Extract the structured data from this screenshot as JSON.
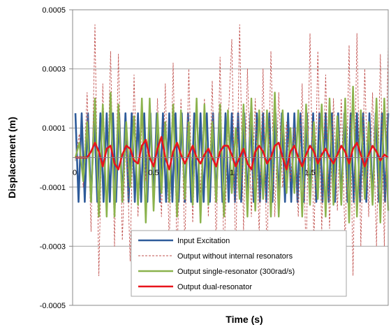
{
  "chart_data": {
    "type": "line",
    "title": "",
    "xlabel": "Time (s)",
    "ylabel": "Displacement (m)",
    "xlim": [
      0,
      2
    ],
    "ylim": [
      -0.0005,
      0.0005
    ],
    "y_ticks": [
      0.0005,
      0.0003,
      0.0001,
      -0.0001,
      -0.0003,
      -0.0005
    ],
    "y_tick_labels": [
      "0.0005",
      "0.0003",
      "0.0001",
      "-0.0001",
      "-0.0003",
      "-0.0005"
    ],
    "x_ticks": [
      0,
      0.5,
      1,
      1.5
    ],
    "x_tick_labels": [
      "0",
      "0.5",
      "1",
      "1.5"
    ],
    "grid": "horizontal",
    "legend_position": "bottom-center",
    "series": [
      {
        "name": "Input Excitation",
        "color": "#2e5b9a",
        "style": "solid-thick",
        "x": [
          0,
          0.02,
          0.04,
          0.06,
          0.08,
          0.1,
          0.12,
          0.14,
          0.16,
          0.18,
          0.2,
          0.22,
          0.24,
          0.26,
          0.28,
          0.3,
          0.32,
          0.34,
          0.36,
          0.38,
          0.4,
          0.42,
          0.44,
          0.46,
          0.48,
          0.5,
          0.52,
          0.54,
          0.56,
          0.58,
          0.6,
          0.62,
          0.64,
          0.66,
          0.68,
          0.7,
          0.72,
          0.74,
          0.76,
          0.78,
          0.8,
          0.82,
          0.84,
          0.86,
          0.88,
          0.9,
          0.92,
          0.94,
          0.96,
          0.98,
          1.0,
          1.02,
          1.04,
          1.06,
          1.08,
          1.1,
          1.12,
          1.14,
          1.16,
          1.18,
          1.2,
          1.22,
          1.24,
          1.26,
          1.28,
          1.3,
          1.32,
          1.34,
          1.36,
          1.38,
          1.4,
          1.42,
          1.44,
          1.46,
          1.48,
          1.5,
          1.52,
          1.54,
          1.56,
          1.58,
          1.6,
          1.62,
          1.64,
          1.66,
          1.68,
          1.7,
          1.72,
          1.74,
          1.76,
          1.78,
          1.8,
          1.82,
          1.84,
          1.86,
          1.88,
          1.9,
          1.92,
          1.94,
          1.96,
          1.98,
          2.0
        ],
        "y": [
          0.00015,
          -0.00015,
          0.00015,
          -0.00015,
          0.00015,
          -0.00015,
          0.00015,
          -0.00015,
          0.00015,
          -0.00015,
          0.00015,
          -0.00015,
          0.00015,
          -0.00015,
          0.00015,
          -0.00015,
          0.00015,
          -0.00015,
          0.00015,
          -0.00015,
          0.00015,
          -0.00015,
          0.00015,
          -0.00015,
          0.00015,
          -0.00015,
          0.00015,
          -0.00015,
          0.00015,
          -0.00015,
          0.00015,
          -0.00015,
          0.00015,
          -0.00015,
          0.00015,
          -0.00015,
          0.00015,
          -0.00015,
          0.00015,
          -0.00015,
          0.00015,
          -0.00015,
          0.00015,
          -0.00015,
          0.00015,
          -0.00015,
          0.00015,
          -0.00015,
          0.00015,
          -0.00015,
          0.00015,
          -0.00015,
          0.00015,
          -0.00015,
          0.00015,
          -0.00015,
          0.00015,
          -0.00015,
          0.00015,
          -0.00015,
          0.00015,
          -0.00015,
          0.00015,
          -0.00015,
          0.00015,
          -0.00015,
          0.00015,
          -0.00015,
          0.00015,
          -0.00015,
          0.00015,
          -0.00015,
          0.00015,
          -0.00015,
          0.00015,
          -0.00015,
          0.00015,
          -0.00015,
          0.00015,
          -0.00015,
          0.00015,
          -0.00015,
          0.00015,
          -0.00015,
          0.00015,
          -0.00015,
          0.00015,
          -0.00015,
          0.00015,
          -0.00015,
          0.00015,
          -0.00015,
          0.00015,
          -0.00015,
          0.00015,
          -0.00015,
          0.00015,
          -0.00015,
          0.00015,
          -0.00015,
          0.00015
        ]
      },
      {
        "name": "Output without internal resonators",
        "color": "#c0504d",
        "style": "dashed-thin",
        "x": [
          0,
          0.025,
          0.05,
          0.075,
          0.1,
          0.125,
          0.15,
          0.175,
          0.2,
          0.225,
          0.25,
          0.275,
          0.3,
          0.325,
          0.35,
          0.375,
          0.4,
          0.425,
          0.45,
          0.475,
          0.5,
          0.525,
          0.55,
          0.575,
          0.6,
          0.625,
          0.65,
          0.675,
          0.7,
          0.725,
          0.75,
          0.775,
          0.8,
          0.825,
          0.85,
          0.875,
          0.9,
          0.925,
          0.95,
          0.975,
          1.0,
          1.025,
          1.05,
          1.075,
          1.1,
          1.125,
          1.15,
          1.175,
          1.2,
          1.225,
          1.25,
          1.275,
          1.3,
          1.325,
          1.35,
          1.375,
          1.4,
          1.425,
          1.45,
          1.475,
          1.5,
          1.525,
          1.55,
          1.575,
          1.6,
          1.625,
          1.65,
          1.675,
          1.7,
          1.725,
          1.75,
          1.775,
          1.8,
          1.825,
          1.85,
          1.875,
          1.9,
          1.925,
          1.95,
          1.975,
          2.0
        ],
        "y": [
          0.0,
          8e-05,
          -0.0001,
          0.00022,
          -0.00025,
          0.00045,
          -0.0004,
          0.00025,
          -0.0002,
          0.00036,
          -0.0003,
          0.00035,
          -0.00028,
          0.0001,
          -0.00035,
          0.00028,
          -0.0002,
          0.00012,
          -8e-05,
          0.00018,
          -0.00015,
          0.0002,
          -0.0002,
          0.00025,
          -0.0003,
          0.00032,
          -0.00035,
          0.0002,
          -0.0003,
          0.0003,
          -0.00022,
          0.00016,
          -0.00012,
          0.0002,
          -0.0002,
          0.00026,
          -0.0003,
          0.00034,
          -0.00035,
          0.0001,
          0.0004,
          -0.00035,
          0.00045,
          -0.00025,
          0.0003,
          -0.0002,
          0.0002,
          -0.00026,
          0.0003,
          -0.00035,
          0.00036,
          -0.0002,
          0.00022,
          -0.0001,
          0.00012,
          -8e-05,
          0.0001,
          -0.0002,
          0.00025,
          -0.00035,
          0.00042,
          -0.0003,
          0.00036,
          -0.00025,
          0.00028,
          -0.00024,
          0.0002,
          -0.00018,
          0.0002,
          -0.0003,
          0.00038,
          -0.0004,
          0.00042,
          -0.0003,
          0.0003,
          -0.0002,
          0.00022,
          -0.0003,
          0.00035,
          -0.0003,
          0.00038
        ]
      },
      {
        "name": "Output single-resonator (300rad/s)",
        "color": "#8bb34d",
        "style": "solid-medium",
        "x": [
          0,
          0.025,
          0.05,
          0.075,
          0.1,
          0.125,
          0.15,
          0.175,
          0.2,
          0.225,
          0.25,
          0.275,
          0.3,
          0.325,
          0.35,
          0.375,
          0.4,
          0.425,
          0.45,
          0.475,
          0.5,
          0.525,
          0.55,
          0.575,
          0.6,
          0.625,
          0.65,
          0.675,
          0.7,
          0.725,
          0.75,
          0.775,
          0.8,
          0.825,
          0.85,
          0.875,
          0.9,
          0.925,
          0.95,
          0.975,
          1.0,
          1.025,
          1.05,
          1.075,
          1.1,
          1.125,
          1.15,
          1.175,
          1.2,
          1.225,
          1.25,
          1.275,
          1.3,
          1.325,
          1.35,
          1.375,
          1.4,
          1.425,
          1.45,
          1.475,
          1.5,
          1.525,
          1.55,
          1.575,
          1.6,
          1.625,
          1.65,
          1.675,
          1.7,
          1.725,
          1.75,
          1.775,
          1.8,
          1.825,
          1.85,
          1.875,
          1.9,
          1.925,
          1.95,
          1.975,
          2.0
        ],
        "y": [
          0.0,
          5e-05,
          -8e-05,
          0.00012,
          -0.00015,
          0.0002,
          -0.0002,
          0.00018,
          -0.0002,
          0.00022,
          -0.0002,
          0.00018,
          -0.00015,
          0.00012,
          -0.0001,
          0.00014,
          -0.00016,
          0.0002,
          -0.00022,
          0.0002,
          -0.00018,
          0.00015,
          -0.00012,
          0.00012,
          -0.00015,
          0.00018,
          -0.0002,
          0.00016,
          -0.00014,
          0.00012,
          -0.00016,
          0.0002,
          -0.00022,
          0.00018,
          -0.00016,
          0.00012,
          -0.00015,
          0.00018,
          -0.0002,
          0.00016,
          -0.00012,
          0.0001,
          -0.00014,
          0.00018,
          -0.0002,
          0.0002,
          -0.00018,
          0.00016,
          -0.00014,
          0.00016,
          -0.0002,
          0.00022,
          -0.0002,
          0.00016,
          -0.00012,
          0.0001,
          -0.00012,
          0.00016,
          -0.0002,
          0.00018,
          -0.00016,
          0.00012,
          -0.00014,
          0.00018,
          -0.0002,
          0.0002,
          -0.00016,
          0.00014,
          -0.00016,
          0.0002,
          -0.00022,
          0.00024,
          -0.0002,
          0.00016,
          -0.00014,
          0.00012,
          -0.00016,
          0.0002,
          -0.00022,
          0.0002,
          -0.00018
        ]
      },
      {
        "name": "Output dual-resonator",
        "color": "#e8141c",
        "style": "solid-thick",
        "x": [
          0,
          0.025,
          0.05,
          0.075,
          0.1,
          0.125,
          0.15,
          0.175,
          0.2,
          0.225,
          0.25,
          0.275,
          0.3,
          0.325,
          0.35,
          0.375,
          0.4,
          0.425,
          0.45,
          0.475,
          0.5,
          0.525,
          0.55,
          0.575,
          0.6,
          0.625,
          0.65,
          0.675,
          0.7,
          0.725,
          0.75,
          0.775,
          0.8,
          0.825,
          0.85,
          0.875,
          0.9,
          0.925,
          0.95,
          0.975,
          1.0,
          1.025,
          1.05,
          1.075,
          1.1,
          1.125,
          1.15,
          1.175,
          1.2,
          1.225,
          1.25,
          1.275,
          1.3,
          1.325,
          1.35,
          1.375,
          1.4,
          1.425,
          1.45,
          1.475,
          1.5,
          1.525,
          1.55,
          1.575,
          1.6,
          1.625,
          1.65,
          1.675,
          1.7,
          1.725,
          1.75,
          1.775,
          1.8,
          1.825,
          1.85,
          1.875,
          1.9,
          1.925,
          1.95,
          1.975,
          2.0
        ],
        "y": [
          0.0,
          0.0,
          0.0,
          0.0,
          2e-05,
          5e-05,
          2e-05,
          -3e-05,
          3e-05,
          4e-05,
          -2e-05,
          -4e-05,
          1e-05,
          4e-05,
          3e-05,
          -1e-05,
          -2e-05,
          4e-05,
          6e-05,
          0.0,
          -3e-05,
          3e-05,
          7e-05,
          0.0,
          -4e-05,
          2e-05,
          5e-05,
          1e-05,
          -2e-05,
          1e-05,
          4e-05,
          0.0,
          -2e-05,
          1e-05,
          3e-05,
          0.0,
          -3e-05,
          2e-05,
          4e-05,
          4e-05,
          1e-05,
          -3e-05,
          0.0,
          3e-05,
          -2e-05,
          -4e-05,
          2e-05,
          4e-05,
          2e-05,
          -2e-05,
          0.0,
          4e-05,
          5e-05,
          0.0,
          -4e-05,
          2e-05,
          4e-05,
          0.0,
          -3e-05,
          1e-05,
          4e-05,
          2e-05,
          -2e-05,
          1e-05,
          3e-05,
          0.0,
          -2e-05,
          1e-05,
          4e-05,
          2e-05,
          -2e-05,
          3e-05,
          5e-05,
          1e-05,
          -3e-05,
          1e-05,
          4e-05,
          2e-05,
          -1e-05,
          1e-05,
          0.0
        ]
      }
    ]
  }
}
